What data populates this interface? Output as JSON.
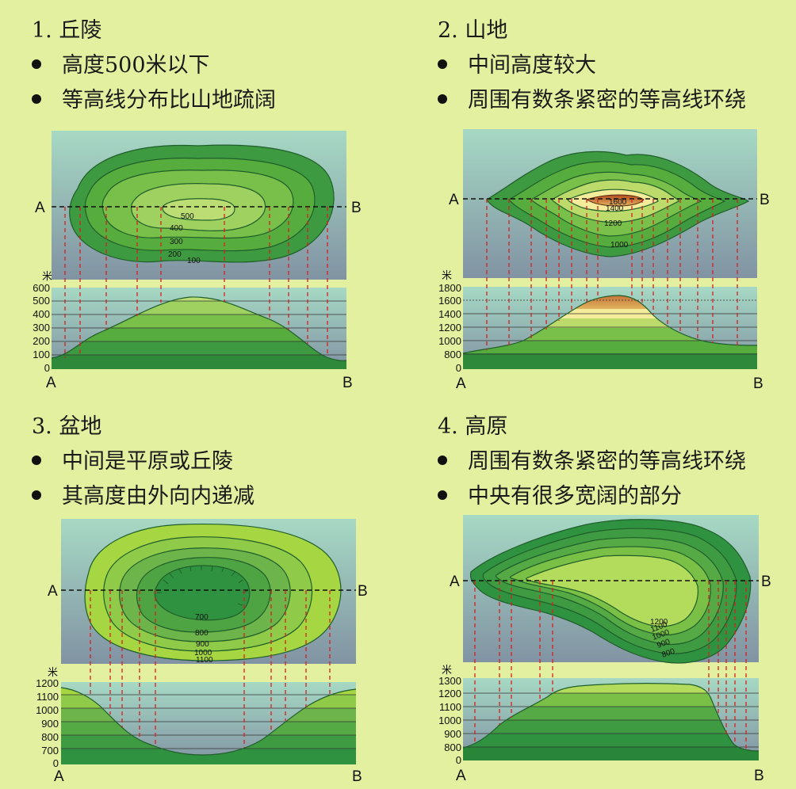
{
  "panels": [
    {
      "heading": "1.  丘陵",
      "bullets": [
        "高度500米以下",
        "等高线分布比山地疏阔"
      ],
      "point_a": "A",
      "point_b": "B",
      "unit": "米",
      "ticks": [
        "600",
        "500",
        "400",
        "300",
        "200",
        "100",
        "0"
      ],
      "contours": [
        "500",
        "400",
        "300",
        "200",
        "100"
      ]
    },
    {
      "heading": "2.  山地",
      "bullets": [
        "中间高度较大",
        "周围有数条紧密的等高线环绕"
      ],
      "point_a": "A",
      "point_b": "B",
      "unit": "米",
      "ticks": [
        "1800",
        "1600",
        "1400",
        "1200",
        "1000",
        "800",
        "0"
      ],
      "contours": [
        "1600",
        "1400",
        "1200",
        "1000"
      ]
    },
    {
      "heading": "3.  盆地",
      "bullets": [
        "中间是平原或丘陵",
        "其高度由外向内递减"
      ],
      "point_a": "A",
      "point_b": "B",
      "unit": "米",
      "ticks": [
        "1200",
        "1100",
        "1000",
        "900",
        "800",
        "700",
        "0"
      ],
      "contours": [
        "700",
        "800",
        "900",
        "1000",
        "1100"
      ]
    },
    {
      "heading": "4.  高原",
      "bullets": [
        "周围有数条紧密的等高线环绕",
        "中央有很多宽阔的部分"
      ],
      "point_a": "A",
      "point_b": "B",
      "unit": "米",
      "ticks": [
        "1300",
        "1200",
        "1100",
        "1000",
        "900",
        "800",
        "0"
      ],
      "contours": [
        "1200",
        "1100",
        "1000",
        "900",
        "800"
      ]
    }
  ]
}
